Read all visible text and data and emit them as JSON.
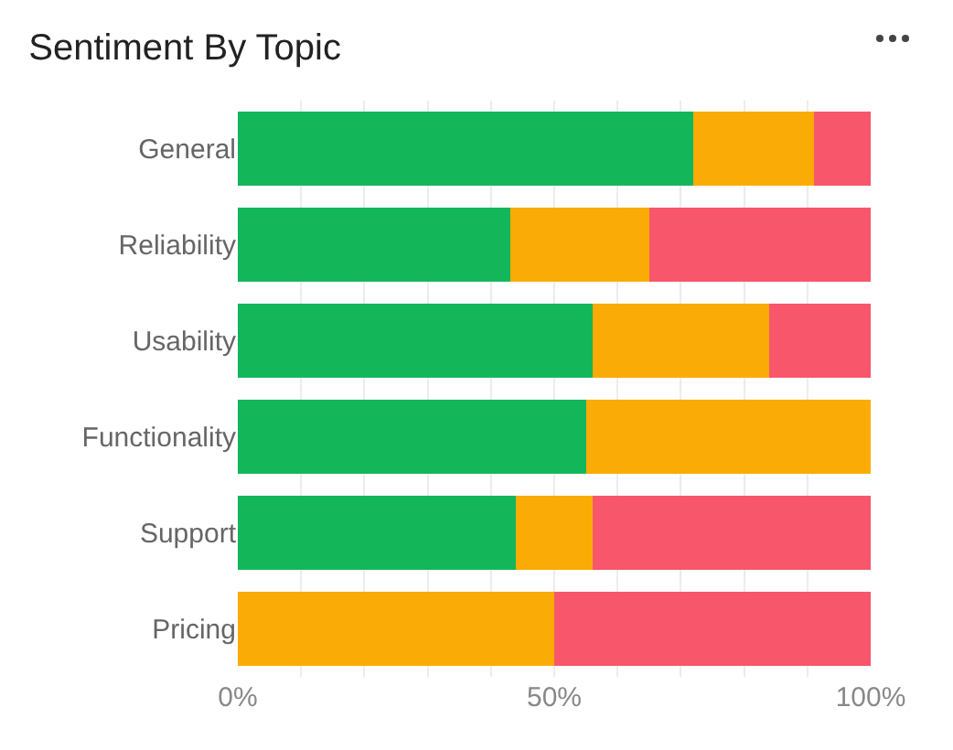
{
  "chart_data": {
    "type": "bar",
    "title": "Sentiment By Topic",
    "orientation": "horizontal",
    "stacked": true,
    "categories": [
      "General",
      "Reliability",
      "Usability",
      "Functionality",
      "Support",
      "Pricing"
    ],
    "series": [
      {
        "color": "#13b75a",
        "values": [
          72,
          43,
          56,
          55,
          44,
          0
        ]
      },
      {
        "color": "#fbab05",
        "values": [
          19,
          22,
          28,
          45,
          12,
          50
        ]
      },
      {
        "color": "#f7566b",
        "values": [
          9,
          35,
          16,
          0,
          44,
          50
        ]
      }
    ],
    "xlim": [
      0,
      100
    ],
    "xticks": [
      {
        "value": 0,
        "label": "0%"
      },
      {
        "value": 10,
        "label": null
      },
      {
        "value": 20,
        "label": null
      },
      {
        "value": 30,
        "label": null
      },
      {
        "value": 40,
        "label": null
      },
      {
        "value": 50,
        "label": "50%"
      },
      {
        "value": 60,
        "label": null
      },
      {
        "value": 70,
        "label": null
      },
      {
        "value": 80,
        "label": null
      },
      {
        "value": 90,
        "label": null
      },
      {
        "value": 100,
        "label": "100%"
      }
    ],
    "grid": "x"
  }
}
